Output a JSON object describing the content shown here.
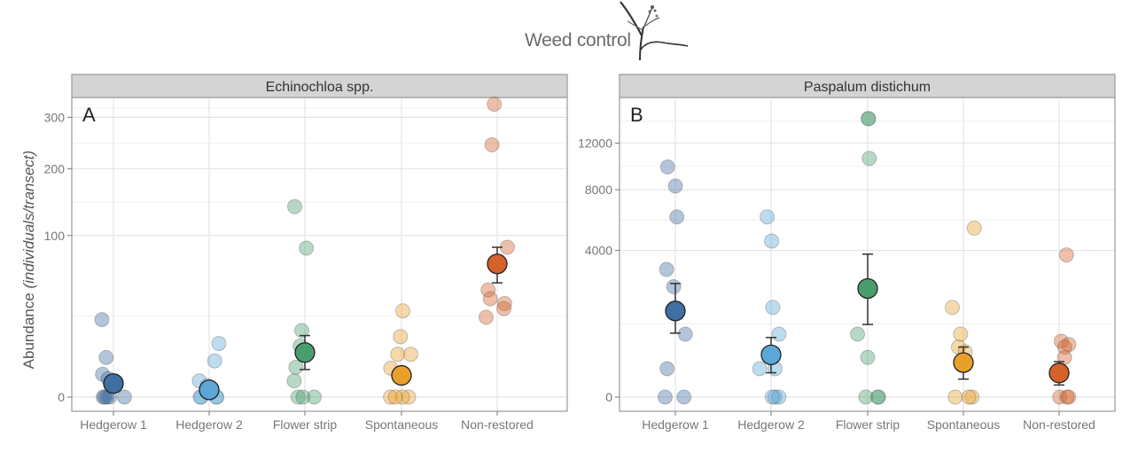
{
  "header": {
    "title": "Weed control",
    "icon": "weed-plant-icon"
  },
  "chart_data": [
    {
      "type": "scatter",
      "panel_letter": "A",
      "title": "Echinochloa spp.",
      "xlabel": "",
      "ylabel_prefix": "Abundance ",
      "ylabel_italic": "(individuals/transect)",
      "y_scale": "sqrt",
      "ylim": [
        0,
        340
      ],
      "yticks": [
        0,
        100,
        200,
        300
      ],
      "grid": true,
      "categories": [
        "Hedgerow 1",
        "Hedgerow 2",
        "Flower strip",
        "Spontaneous",
        "Non-restored"
      ],
      "colors": [
        "#3f6fa3",
        "#5ba8d8",
        "#4a9e6e",
        "#e8a02a",
        "#d4622a"
      ],
      "series": [
        {
          "name": "Hedgerow 1",
          "points": [
            23,
            6,
            2,
            1.3,
            0,
            0,
            0,
            0,
            0
          ],
          "mean": 0.7,
          "se_low": 0.2,
          "se_high": 1.3
        },
        {
          "name": "Hedgerow 2",
          "points": [
            11,
            5,
            1,
            0.5,
            0,
            0,
            0,
            0
          ],
          "mean": 0.2,
          "se_low": 0.05,
          "se_high": 0.5
        },
        {
          "name": "Flower strip",
          "points": [
            139,
            85,
            17,
            10,
            8,
            3.4,
            1,
            0,
            0,
            0
          ],
          "mean": 7.6,
          "se_low": 2.9,
          "se_high": 14.5
        },
        {
          "name": "Spontaneous",
          "points": [
            28.5,
            14,
            7,
            7,
            3.2,
            0,
            0,
            0,
            0
          ],
          "mean": 1.8,
          "se_low": 1.0,
          "se_high": 2.8
        },
        {
          "name": "Non-restored",
          "points": [
            329,
            244,
            86,
            68,
            44,
            37,
            33.5,
            30,
            24.4
          ],
          "mean": 68,
          "se_low": 50,
          "se_high": 86
        }
      ]
    },
    {
      "type": "scatter",
      "panel_letter": "B",
      "title": "Paspalum distichum",
      "xlabel": "",
      "y_scale": "sqrt",
      "ylim": [
        0,
        16500
      ],
      "yticks": [
        0,
        4000,
        8000,
        12000
      ],
      "grid": true,
      "categories": [
        "Hedgerow 1",
        "Hedgerow 2",
        "Flower strip",
        "Spontaneous",
        "Non-restored"
      ],
      "colors": [
        "#3f6fa3",
        "#5ba8d8",
        "#4a9e6e",
        "#e8a02a",
        "#d4622a"
      ],
      "series": [
        {
          "name": "Hedgerow 1",
          "points": [
            9850,
            8290,
            6040,
            3030,
            2265,
            736,
            150,
            0,
            0
          ],
          "mean": 1380,
          "se_low": 760,
          "se_high": 2400
        },
        {
          "name": "Hedgerow 2",
          "points": [
            6040,
            4530,
            1495,
            736,
            150,
            150,
            0,
            0,
            0
          ],
          "mean": 332,
          "se_low": 110,
          "se_high": 660
        },
        {
          "name": "Flower strip",
          "points": [
            14420,
            14420,
            10600,
            736,
            292,
            0,
            0,
            0
          ],
          "mean": 2194,
          "se_low": 980,
          "se_high": 3800
        },
        {
          "name": "Spontaneous",
          "points": [
            5310,
            1495,
            736,
            465,
            380,
            0,
            0,
            0
          ],
          "mean": 221,
          "se_low": 60,
          "se_high": 465
        },
        {
          "name": "Non-restored",
          "points": [
            3760,
            580,
            514,
            465,
            292,
            0,
            0,
            0
          ],
          "mean": 108,
          "se_low": 27,
          "se_high": 233
        }
      ]
    }
  ]
}
